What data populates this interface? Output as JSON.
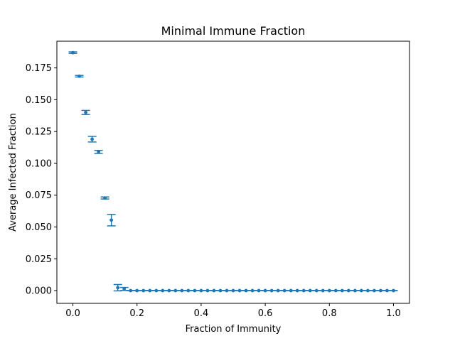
{
  "chart_data": {
    "type": "scatter",
    "title": "Minimal Immune Fraction",
    "xlabel": "Fraction of Immunity",
    "ylabel": "Average Infected Fraction",
    "xlim": [
      -0.05,
      1.05
    ],
    "ylim": [
      -0.01,
      0.196
    ],
    "x_ticks": [
      "0.0",
      "0.2",
      "0.4",
      "0.6",
      "0.8",
      "1.0"
    ],
    "x_tick_values": [
      0.0,
      0.2,
      0.4,
      0.6,
      0.8,
      1.0
    ],
    "y_ticks": [
      "0.000",
      "0.025",
      "0.050",
      "0.075",
      "0.100",
      "0.125",
      "0.150",
      "0.175"
    ],
    "y_tick_values": [
      0.0,
      0.025,
      0.05,
      0.075,
      0.1,
      0.125,
      0.15,
      0.175
    ],
    "grid": false,
    "marker_color": "#1f77b4",
    "series": [
      {
        "x": [
          0.0,
          0.02,
          0.04,
          0.06,
          0.08,
          0.1,
          0.12,
          0.14,
          0.16,
          0.18,
          0.2,
          0.22,
          0.24,
          0.26,
          0.28,
          0.3,
          0.32,
          0.34,
          0.36,
          0.38,
          0.4,
          0.42,
          0.44,
          0.46,
          0.48,
          0.5,
          0.52,
          0.54,
          0.56,
          0.58,
          0.6,
          0.62,
          0.64,
          0.66,
          0.68,
          0.7,
          0.72,
          0.74,
          0.76,
          0.78,
          0.8,
          0.82,
          0.84,
          0.86,
          0.88,
          0.9,
          0.92,
          0.94,
          0.96,
          0.98,
          1.0
        ],
        "y": [
          0.187,
          0.1685,
          0.14,
          0.119,
          0.109,
          0.0728,
          0.0554,
          0.0023,
          0.0013,
          0.0,
          0.0,
          0.0,
          0.0,
          0.0,
          0.0,
          0.0,
          0.0,
          0.0,
          0.0,
          0.0,
          0.0,
          0.0,
          0.0,
          0.0,
          0.0,
          0.0,
          0.0,
          0.0,
          0.0,
          0.0,
          0.0,
          0.0,
          0.0,
          0.0,
          0.0,
          0.0,
          0.0,
          0.0,
          0.0,
          0.0,
          0.0,
          0.0,
          0.0,
          0.0,
          0.0,
          0.0,
          0.0,
          0.0,
          0.0,
          0.0,
          0.0
        ],
        "yerr": [
          0.0006,
          0.0006,
          0.0016,
          0.0022,
          0.0012,
          0.0008,
          0.0045,
          0.0025,
          0.0012,
          0.0001,
          0.0001,
          0.0001,
          0.0001,
          0.0001,
          0.0001,
          0.0001,
          0.0001,
          0.0001,
          0.0001,
          0.0001,
          0.0001,
          0.0001,
          0.0001,
          0.0001,
          0.0001,
          0.0001,
          0.0001,
          0.0001,
          0.0001,
          0.0001,
          0.0001,
          0.0001,
          0.0001,
          0.0001,
          0.0001,
          0.0001,
          0.0001,
          0.0001,
          0.0001,
          0.0001,
          0.0001,
          0.0001,
          0.0001,
          0.0001,
          0.0001,
          0.0001,
          0.0001,
          0.0001,
          0.0001,
          0.0001,
          0.0001
        ]
      }
    ]
  }
}
